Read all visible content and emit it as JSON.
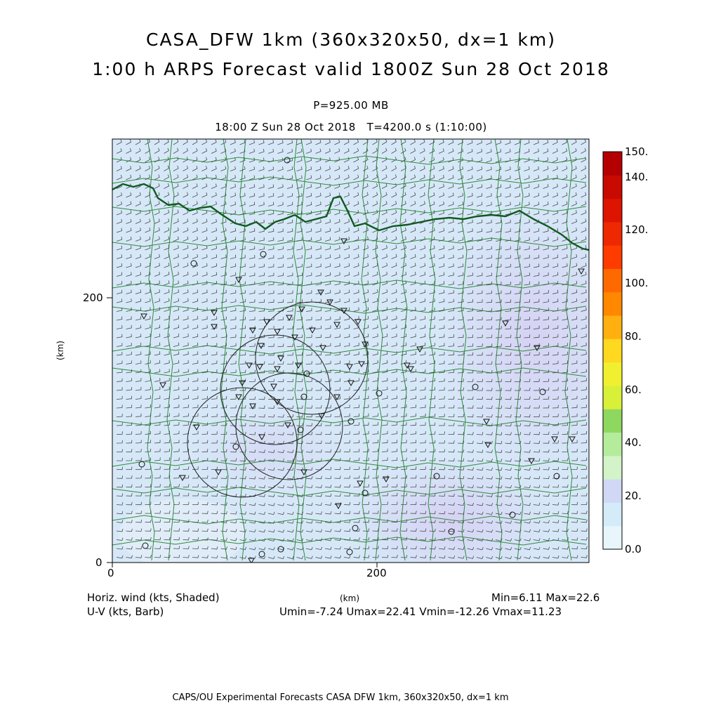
{
  "header": {
    "title_line1": "CASA_DFW 1km (360x320x50, dx=1 km)",
    "title_line2": "1:00 h ARPS Forecast valid 1800Z Sun 28 Oct 2018",
    "pressure_level": "P=925.00 MB",
    "time_line": "18:00 Z Sun 28 Oct 2018   T=4200.0 s (1:10:00)"
  },
  "axes": {
    "x_ticks": [
      "0",
      "200"
    ],
    "y_ticks": [
      "0",
      "200"
    ],
    "x_label": "(km)",
    "y_label": "(km)",
    "xlim": [
      0,
      360
    ],
    "ylim": [
      0,
      320
    ]
  },
  "colorbar": {
    "labels": [
      "150.",
      "140.",
      "120.",
      "100.",
      "80.",
      "60.",
      "40.",
      "20.",
      "0.0"
    ],
    "colors": [
      "#e8f6fc",
      "#d4ecfa",
      "#d0d8f6",
      "#d2f4c8",
      "#b4ec9c",
      "#8ed860",
      "#d8f038",
      "#f0f030",
      "#ffd820",
      "#ffb010",
      "#ff8800",
      "#ff6a00",
      "#ff3c00",
      "#ee2800",
      "#dc1400",
      "#c80a00",
      "#b40000"
    ]
  },
  "legend": {
    "field_shaded": "Horiz. wind (kts, Shaded)",
    "field_barb": "U-V (kts, Barb)",
    "minmax": "Min=6.11 Max=22.6",
    "uv_stats": "Umin=-7.24 Umax=22.41 Vmin=-12.26 Vmax=11.23"
  },
  "footer": {
    "text": "CAPS/OU Experimental Forecasts  CASA DFW 1km, 360x320x50, dx=1 km"
  },
  "map_style": {
    "shade_base": "#d6e8f8",
    "shade_purple": "#d8d8f4",
    "county_color": "#2e8b3a",
    "state_color": "#0e5a1e",
    "barb_color": "#4a4a4a"
  }
}
